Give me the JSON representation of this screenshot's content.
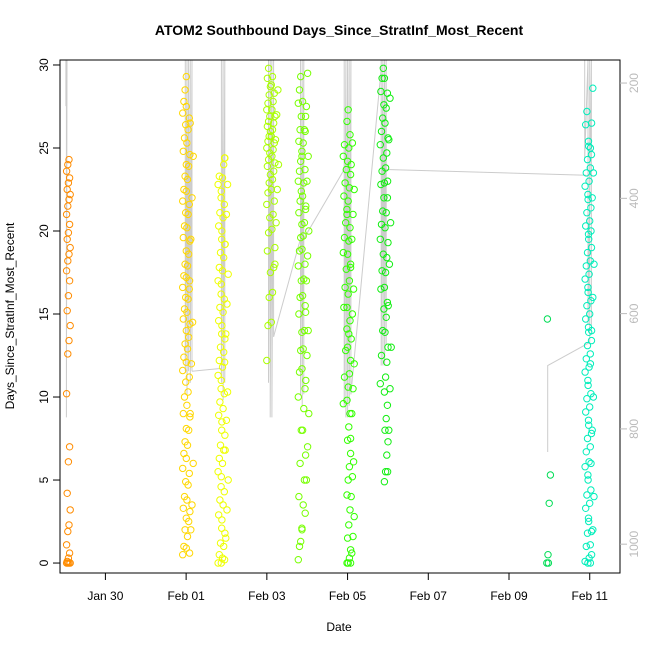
{
  "chart_data": {
    "type": "scatter",
    "title": "ATOM2 Southbound Days_Since_StratInf_Most_Recent",
    "xlabel": "Date",
    "ylabel": "Days_Since_StratInf_Most_Recent",
    "x_tick_labels": [
      "Jan 30",
      "Feb 01",
      "Feb 03",
      "Feb 05",
      "Feb 07",
      "Feb 09",
      "Feb 11"
    ],
    "x_tick_dates": [
      "2014-01-30",
      "2014-02-01",
      "2014-02-03",
      "2014-02-05",
      "2014-02-07",
      "2014-02-09",
      "2014-02-11"
    ],
    "xlim": [
      "2014-01-28T21:00",
      "2014-02-11T18:00"
    ],
    "ylim": [
      -0.6,
      30.3
    ],
    "y_ticks": [
      0,
      5,
      10,
      15,
      20,
      25,
      30
    ],
    "secondary_axis": {
      "side": "right",
      "color": "#bbbbbb",
      "ticks": [
        200,
        400,
        600,
        800,
        1000
      ],
      "ylim": [
        1050,
        160
      ],
      "reversed": true
    },
    "grid": false,
    "legend": "none",
    "point_style": "open-circle",
    "series": [
      {
        "color": "#ff8c00",
        "x": "2014-01-29T02:00",
        "profiles": [
          {
            "dt": 0.0,
            "y": [
              0,
              0,
              0,
              0,
              0.1,
              0.3,
              0.6,
              1.1,
              1.9,
              2.3,
              3.2,
              4.2,
              6.1,
              7.0,
              10.2,
              12.6,
              13.4,
              14.3,
              15.2,
              16.1,
              17.0,
              17.6,
              18.2,
              18.6,
              19.0,
              19.5,
              19.9,
              20.4,
              21.0,
              21.5,
              21.9,
              22.2,
              22.5,
              22.9,
              23.2,
              23.6,
              24.0,
              24.3
            ]
          }
        ]
      },
      {
        "color": "#ffd700",
        "x": "2014-02-01T00:00",
        "profiles": [
          {
            "dt": -0.04,
            "y": [
              0.5,
              1.0,
              2.0,
              2.7,
              3.3,
              4.0,
              4.9,
              5.7,
              6.6,
              7.3,
              8.1,
              9.0,
              10.0,
              10.9,
              11.6,
              12.4,
              13.2,
              14.0,
              14.7,
              15.3,
              16.0,
              16.6,
              17.3,
              18.0,
              18.8,
              19.6,
              20.3,
              21.1,
              21.8,
              22.5,
              23.3,
              24.0,
              24.8,
              25.6,
              26.4,
              27.1,
              27.8,
              28.5,
              29.3
            ]
          },
          {
            "dt": 0.05,
            "y": [
              0.9,
              1.6,
              2.5,
              3.1,
              3.8,
              4.7,
              5.4,
              6.3,
              7.1,
              8.0,
              8.8,
              9.5,
              10.3,
              11.2,
              12.1,
              12.9,
              13.6,
              14.4,
              15.1,
              15.9,
              16.5,
              17.2,
              17.9,
              18.6,
              19.4,
              20.2,
              21.0,
              21.6,
              22.4,
              23.1,
              23.9,
              24.6,
              25.3,
              26.1,
              26.8,
              27.5
            ]
          },
          {
            "dt": 0.13,
            "y": [
              0.6,
              2.0,
              3.5,
              6.0,
              9.0,
              12.0,
              14.5,
              17.0,
              19.5,
              22.0,
              24.5,
              26.5
            ]
          }
        ]
      },
      {
        "color": "#eeff00",
        "x": "2014-02-01T22:00",
        "profiles": [
          {
            "dt": -0.08,
            "y": [
              0,
              0.5,
              1.2,
              2.1,
              2.9,
              3.8,
              4.6,
              5.5,
              6.3,
              7.1,
              8.0,
              8.9,
              9.7,
              10.5,
              11.3,
              12.2,
              13.0,
              13.8,
              14.6,
              15.4,
              16.2,
              17.0,
              17.8,
              18.7,
              19.5,
              20.3,
              21.1,
              22.0,
              22.8,
              23.3
            ]
          },
          {
            "dt": 0.0,
            "y": [
              0,
              0.3,
              1.0,
              1.8,
              2.6,
              3.5,
              4.3,
              5.2,
              6.0,
              6.8,
              7.7,
              8.5,
              9.3,
              10.2,
              11.0,
              11.8,
              12.7,
              13.5,
              14.3,
              15.1,
              15.9,
              16.8,
              17.6,
              18.4,
              19.2,
              20.0,
              20.8,
              21.6,
              22.4,
              23.2,
              24.0,
              24.4
            ]
          },
          {
            "dt": 0.08,
            "y": [
              0.2,
              1.5,
              3.2,
              5.0,
              6.8,
              8.6,
              10.3,
              12.1,
              13.8,
              15.6,
              17.4,
              19.2,
              21.0,
              22.8,
              24.4
            ]
          }
        ]
      },
      {
        "color": "#aaff00",
        "x": "2014-02-03T02:30",
        "profiles": [
          {
            "dt": -0.06,
            "y": [
              12.2,
              14.3,
              16.0,
              17.5,
              18.8,
              19.9,
              20.8,
              21.6,
              22.3,
              22.9,
              23.4,
              23.9,
              24.3,
              24.7,
              25.0,
              25.4,
              25.7,
              26.0,
              26.3,
              26.6,
              26.9,
              27.3,
              27.7,
              28.2,
              28.7,
              29.2,
              29.8
            ]
          },
          {
            "dt": 0.05,
            "y": [
              14.5,
              16.3,
              17.8,
              19.0,
              20.1,
              21.0,
              21.8,
              22.5,
              23.1,
              23.6,
              24.1,
              24.5,
              24.9,
              25.3,
              25.7,
              26.1,
              26.5,
              26.9,
              27.3,
              27.8,
              28.3,
              28.8,
              29.3
            ]
          },
          {
            "dt": 0.14,
            "y": [
              18.0,
              20.5,
              22.5,
              24.0,
              25.5,
              27.0,
              28.5
            ]
          }
        ]
      },
      {
        "color": "#77ff00",
        "x": "2014-02-03T21:00",
        "profiles": [
          {
            "dt": -0.05,
            "y": [
              0.2,
              1.0,
              1.3,
              2.1,
              4.0,
              6.0,
              8.0,
              10.0,
              11.5,
              12.8,
              13.9,
              15.0,
              16.0,
              17.0,
              17.9,
              18.8,
              19.6,
              20.4,
              21.1,
              21.8,
              22.4,
              23.0,
              23.6,
              24.2,
              24.8,
              25.4,
              26.1,
              26.9,
              27.7,
              28.5,
              29.3
            ]
          },
          {
            "dt": 0.04,
            "y": [
              2.0,
              3.5,
              5.0,
              6.5,
              8.0,
              9.3,
              10.5,
              11.7,
              12.9,
              14.0,
              15.1,
              16.1,
              17.1,
              18.0,
              18.9,
              19.7,
              20.5,
              21.3,
              22.1,
              22.9,
              23.7,
              24.5,
              25.3,
              26.1,
              26.9,
              27.8
            ]
          },
          {
            "dt": 0.12,
            "y": [
              3.0,
              5.0,
              7.0,
              9.0,
              11.0,
              12.5,
              14.0,
              15.5,
              17.0,
              18.5,
              20.0,
              21.5,
              23.0,
              24.5,
              26.0,
              27.5,
              29.5
            ]
          }
        ]
      },
      {
        "color": "#33ff00",
        "x": "2014-02-05T00:00",
        "profiles": [
          {
            "dt": -0.06,
            "y": [
              9.6,
              11.2,
              12.8,
              14.1,
              15.4,
              16.6,
              17.7,
              18.7,
              19.6,
              20.5,
              21.3,
              22.1,
              22.9,
              23.7,
              24.5,
              25.2
            ]
          },
          {
            "dt": 0.03,
            "y": [
              0,
              0,
              0.3,
              0.8,
              1.5,
              2.3,
              3.2,
              4.1,
              5.0,
              5.8,
              6.6,
              7.4,
              8.2,
              9.0,
              9.8,
              10.6,
              11.4,
              12.2,
              13.0,
              13.8,
              14.6,
              15.4,
              16.2,
              17.0,
              17.8,
              18.6,
              19.4,
              20.2,
              21.0,
              21.8,
              22.6,
              23.4,
              24.2,
              25.0,
              25.8,
              26.6,
              27.3
            ]
          },
          {
            "dt": 0.12,
            "y": [
              0,
              0.6,
              1.6,
              2.8,
              4.0,
              5.2,
              6.1,
              7.5,
              9.0,
              10.5,
              12.0,
              13.5,
              15.0,
              16.5,
              18.0,
              19.5,
              21.0,
              22.5,
              24.0,
              25.3
            ]
          }
        ]
      },
      {
        "color": "#11ee11",
        "x": "2014-02-05T22:00",
        "profiles": [
          {
            "dt": -0.06,
            "y": [
              10.8,
              12.5,
              14.0,
              15.3,
              16.5,
              17.6,
              18.6,
              19.5,
              20.4,
              21.2,
              22.0,
              22.8,
              23.6,
              24.4,
              25.2,
              26.0,
              26.8,
              27.6,
              28.4,
              29.2,
              29.8
            ]
          },
          {
            "dt": 0.04,
            "y": [
              4.9,
              5.5,
              6.5,
              7.3,
              8.0,
              8.7,
              9.5,
              10.3,
              11.2,
              12.1,
              13.0,
              13.9,
              14.8,
              15.7,
              16.6,
              17.5,
              18.4,
              19.3,
              20.2,
              21.1,
              22.0,
              22.9,
              23.8,
              24.7,
              25.6,
              26.5,
              27.4,
              28.3,
              29.2
            ]
          },
          {
            "dt": 0.12,
            "y": [
              5.5,
              8.0,
              10.5,
              13.0,
              15.5,
              18.0,
              20.5,
              23.0,
              25.5,
              28.0
            ]
          }
        ]
      },
      {
        "color": "#00dd55",
        "x": "2014-02-10T00:00",
        "profiles": [
          {
            "dt": -0.02,
            "y": [
              0,
              0.5,
              3.6,
              5.3,
              14.7
            ]
          },
          {
            "dt": 0.02,
            "y": [
              0
            ]
          }
        ]
      },
      {
        "color": "#00eebb",
        "x": "2014-02-11T00:00",
        "profiles": [
          {
            "dt": -0.07,
            "y": [
              0.1,
              1.0,
              1.8,
              2.5,
              3.3,
              4.1,
              5.0,
              5.8,
              6.7,
              7.5,
              8.3,
              9.1,
              9.9,
              10.7,
              11.5,
              12.3,
              13.1,
              13.9,
              14.7,
              15.5,
              16.3,
              17.1,
              17.9,
              18.7,
              19.5,
              20.3,
              21.1,
              21.9,
              22.7,
              23.5,
              24.3,
              25.1,
              26.4,
              27.2
            ]
          },
          {
            "dt": 0.0,
            "y": [
              0,
              0.3,
              1.1,
              1.9,
              2.7,
              3.6,
              4.4,
              5.3,
              6.1,
              7.0,
              7.8,
              8.6,
              9.4,
              10.2,
              11.0,
              11.8,
              12.6,
              13.4,
              14.2,
              15.0,
              15.8,
              16.6,
              17.4,
              18.2,
              19.0,
              19.8,
              20.6,
              21.4,
              22.2,
              23.0,
              23.8,
              24.6,
              25.4
            ]
          },
          {
            "dt": 0.06,
            "y": [
              0,
              0.5,
              2.0,
              4.0,
              6.0,
              8.0,
              10.0,
              12.0,
              14.0,
              16.0,
              18.0,
              20.0,
              22.0,
              23.5,
              25.0,
              26.5,
              28.6
            ]
          }
        ]
      }
    ],
    "overlay_line": {
      "color": "#cccccc",
      "axis": "secondary",
      "segments": [
        {
          "x": [
            "2014-01-29T00:30",
            "2014-01-29T00:30",
            "2014-01-29T00:50",
            "2014-01-29T00:50",
            "2014-01-29T01:10",
            "2014-01-29T01:10"
          ],
          "y": [
            160,
            240,
            160,
            780,
            160,
            160
          ]
        },
        {
          "x": [
            "2014-01-31T23:30",
            "2014-01-31T23:30",
            "2014-02-01T00:30",
            "2014-02-01T00:30",
            "2014-02-01T01:30",
            "2014-02-01T01:30",
            "2014-02-01T02:30",
            "2014-02-01T02:30",
            "2014-02-01T03:30",
            "2014-02-01T03:30"
          ],
          "y": [
            160,
            700,
            160,
            740,
            160,
            700,
            160,
            720,
            160,
            700
          ]
        },
        {
          "x": [
            "2014-02-01T03:30",
            "2014-02-01T21:00"
          ],
          "y": [
            700,
            695
          ]
        },
        {
          "x": [
            "2014-02-01T21:00",
            "2014-02-01T21:00",
            "2014-02-01T22:00",
            "2014-02-01T22:00",
            "2014-02-01T23:00",
            "2014-02-01T23:00"
          ],
          "y": [
            160,
            720,
            160,
            750,
            160,
            720
          ]
        },
        {
          "x": [
            "2014-02-03T01:00",
            "2014-02-03T01:00",
            "2014-02-03T02:00",
            "2014-02-03T02:00",
            "2014-02-03T03:00",
            "2014-02-03T03:00",
            "2014-02-03T04:00",
            "2014-02-03T04:00"
          ],
          "y": [
            160,
            720,
            160,
            780,
            160,
            780,
            160,
            640
          ]
        },
        {
          "x": [
            "2014-02-03T04:00",
            "2014-02-03T20:00"
          ],
          "y": [
            640,
            470
          ]
        },
        {
          "x": [
            "2014-02-03T20:00",
            "2014-02-03T20:00",
            "2014-02-03T21:00",
            "2014-02-03T21:00",
            "2014-02-03T22:00",
            "2014-02-03T22:00"
          ],
          "y": [
            160,
            740,
            160,
            760,
            160,
            740
          ]
        },
        {
          "x": [
            "2014-02-03T22:00",
            "2014-02-04T22:00"
          ],
          "y": [
            470,
            350
          ]
        },
        {
          "x": [
            "2014-02-04T22:00",
            "2014-02-04T22:00",
            "2014-02-04T23:00",
            "2014-02-04T23:00",
            "2014-02-05T00:00",
            "2014-02-05T00:00",
            "2014-02-05T01:00",
            "2014-02-05T01:00",
            "2014-02-05T02:00",
            "2014-02-05T02:00"
          ],
          "y": [
            160,
            760,
            160,
            780,
            160,
            780,
            160,
            760,
            160,
            740
          ]
        },
        {
          "x": [
            "2014-02-05T02:00",
            "2014-02-05T20:00"
          ],
          "y": [
            740,
            175
          ]
        },
        {
          "x": [
            "2014-02-05T20:00",
            "2014-02-05T20:00",
            "2014-02-05T21:00",
            "2014-02-05T21:00",
            "2014-02-05T22:00",
            "2014-02-05T22:00",
            "2014-02-05T23:00",
            "2014-02-05T23:00"
          ],
          "y": [
            160,
            690,
            160,
            690,
            160,
            690,
            160,
            655
          ]
        },
        {
          "x": [
            "2014-02-05T23:00",
            "2014-02-05T23:00",
            "2014-02-10T22:00"
          ],
          "y": [
            350,
            350,
            360
          ]
        },
        {
          "x": [
            "2014-02-09T23:00",
            "2014-02-09T23:00",
            "2014-02-11T00:00",
            "2014-02-11T00:00"
          ],
          "y": [
            840,
            690,
            650,
            160
          ]
        },
        {
          "x": [
            "2014-02-10T21:00",
            "2014-02-10T21:00",
            "2014-02-10T23:00",
            "2014-02-10T23:00",
            "2014-02-11T01:00",
            "2014-02-11T01:00"
          ],
          "y": [
            160,
            330,
            160,
            620,
            160,
            620
          ]
        }
      ]
    }
  }
}
